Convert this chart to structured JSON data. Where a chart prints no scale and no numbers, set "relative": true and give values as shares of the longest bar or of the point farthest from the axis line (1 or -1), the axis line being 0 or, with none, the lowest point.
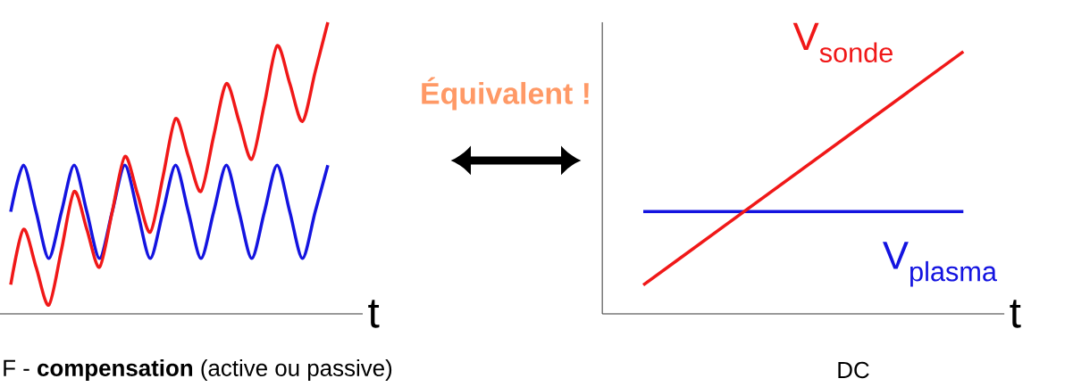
{
  "chart_data": [
    {
      "type": "line",
      "relative": true,
      "xlabel": "t",
      "categories": [
        null,
        null,
        null,
        null,
        null,
        null,
        null,
        null,
        null,
        null,
        null,
        null,
        null,
        null,
        null,
        null,
        null,
        null,
        null,
        null,
        null,
        null,
        null,
        null,
        null,
        null
      ],
      "annotations": [
        "Équivalent !",
        "F - **compensation** (active ou passive)"
      ],
      "series": [
        {
          "color": "#f01818",
          "values": [
            0.1,
            0.29,
            0.16,
            0.03,
            0.22,
            0.42,
            0.29,
            0.16,
            0.35,
            0.54,
            0.41,
            0.28,
            0.47,
            0.67,
            0.54,
            0.42,
            0.61,
            0.79,
            0.66,
            0.53,
            0.72,
            0.92,
            0.79,
            0.66,
            0.83,
            1.0
          ]
        },
        {
          "color": "#1414e0",
          "values": [
            0.35,
            0.51,
            0.35,
            0.19,
            0.35,
            0.51,
            0.35,
            0.19,
            0.35,
            0.51,
            0.35,
            0.19,
            0.35,
            0.51,
            0.35,
            0.19,
            0.35,
            0.51,
            0.35,
            0.19,
            0.35,
            0.51,
            0.35,
            0.19,
            0.35,
            0.51
          ]
        }
      ]
    },
    {
      "type": "line",
      "relative": true,
      "xlabel": "t",
      "categories": [
        null,
        null
      ],
      "annotations": [
        "DC"
      ],
      "series": [
        {
          "name": "V$_{sonde}$",
          "color": "#f01818",
          "values": [
            0.11,
            1.0
          ]
        },
        {
          "name": "V$_{plasma}$",
          "color": "#1414e0",
          "values": [
            0.39,
            0.39
          ]
        }
      ]
    }
  ]
}
